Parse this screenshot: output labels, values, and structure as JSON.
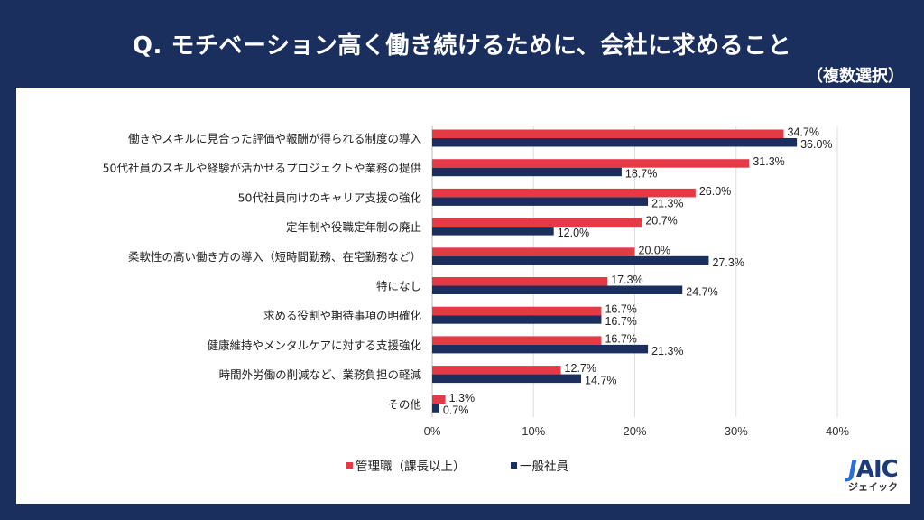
{
  "title": "Q. モチベーション高く働き続けるために、会社に求めること",
  "subtitle": "（複数選択）",
  "logo": {
    "text": "JAIC",
    "kana": "ジェイック"
  },
  "chart_data": {
    "type": "bar",
    "orientation": "horizontal",
    "categories": [
      "働きやスキルに見合った評価や報酬が得られる制度の導入",
      "50代社員のスキルや経験が活かせるプロジェクトや業務の提供",
      "50代社員向けのキャリア支援の強化",
      "定年制や役職定年制の廃止",
      "柔軟性の高い働き方の導入（短時間勤務、在宅勤務など）",
      "特になし",
      "求める役割や期待事項の明確化",
      "健康維持やメンタルケアに対する支援強化",
      "時間外労働の削減など、業務負担の軽減",
      "その他"
    ],
    "series": [
      {
        "name": "管理職（課長以上）",
        "color": "#e63946",
        "values": [
          34.7,
          31.3,
          26.0,
          20.7,
          20.0,
          17.3,
          16.7,
          16.7,
          12.7,
          1.3
        ]
      },
      {
        "name": "一般社員",
        "color": "#1b2f5e",
        "values": [
          36.0,
          18.7,
          21.3,
          12.0,
          27.3,
          24.7,
          16.7,
          21.3,
          14.7,
          0.7
        ]
      }
    ],
    "xlim": [
      0,
      40
    ],
    "xticks": [
      "0%",
      "10%",
      "20%",
      "30%",
      "40%"
    ],
    "grid": true,
    "legend": "bottom-left",
    "unit": "%"
  }
}
